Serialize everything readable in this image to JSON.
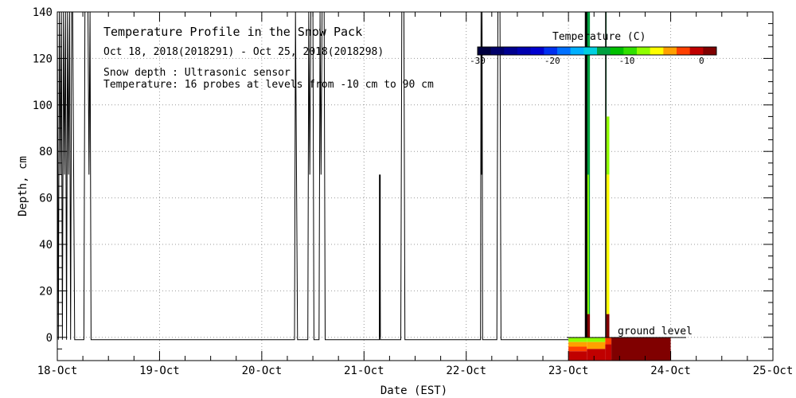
{
  "chart_data": {
    "type": "heatmap",
    "title": "Temperature Profile in the Snow Pack",
    "subtitle": "Oct 18, 2018(2018291) - Oct 25, 2018(2018298)",
    "notes": [
      "Snow depth : Ultrasonic sensor",
      "Temperature: 16 probes at levels from -10 cm to 90 cm"
    ],
    "xlabel": "Date (EST)",
    "ylabel": "Depth, cm",
    "x_ticks": [
      "18-Oct",
      "19-Oct",
      "20-Oct",
      "21-Oct",
      "22-Oct",
      "23-Oct",
      "24-Oct",
      "25-Oct"
    ],
    "xlim": [
      0,
      7
    ],
    "y_ticks": [
      "0",
      "20",
      "40",
      "60",
      "80",
      "100",
      "120",
      "140"
    ],
    "ylim": [
      -10,
      140
    ],
    "grid": true,
    "ground_label": "ground level",
    "colorbar": {
      "title": "Temperature (C)",
      "range": [
        -30,
        2
      ],
      "tick_labels": [
        "-30",
        "-20",
        "-10",
        "0"
      ],
      "tick_values": [
        -30,
        -20,
        -10,
        0
      ],
      "colors": [
        "#000040",
        "#00006a",
        "#000090",
        "#0000b0",
        "#0000d0",
        "#0030f0",
        "#0070ff",
        "#00b0ff",
        "#00d0e0",
        "#00a040",
        "#00c000",
        "#30e000",
        "#90ff00",
        "#ffff00",
        "#ffa000",
        "#ff4000",
        "#c00000",
        "#800000"
      ]
    },
    "snow_depth_series": {
      "description_units": "x in days since 18-Oct 00:00 EST, y in cm",
      "points": [
        [
          0.0,
          140
        ],
        [
          0.01,
          -1
        ],
        [
          0.02,
          140
        ],
        [
          0.03,
          70
        ],
        [
          0.04,
          140
        ],
        [
          0.05,
          -1
        ],
        [
          0.06,
          140
        ],
        [
          0.07,
          70
        ],
        [
          0.08,
          140
        ],
        [
          0.09,
          -1
        ],
        [
          0.1,
          140
        ],
        [
          0.11,
          70
        ],
        [
          0.12,
          140
        ],
        [
          0.13,
          -1
        ],
        [
          0.14,
          140
        ],
        [
          0.15,
          140
        ],
        [
          0.17,
          -1
        ],
        [
          0.26,
          -1
        ],
        [
          0.27,
          140
        ],
        [
          0.3,
          140
        ],
        [
          0.31,
          70
        ],
        [
          0.32,
          140
        ],
        [
          0.33,
          -1
        ],
        [
          2.32,
          -1
        ],
        [
          2.33,
          140
        ],
        [
          2.34,
          70
        ],
        [
          2.35,
          -1
        ],
        [
          2.45,
          -1
        ],
        [
          2.46,
          140
        ],
        [
          2.47,
          70
        ],
        [
          2.48,
          140
        ],
        [
          2.5,
          140
        ],
        [
          2.51,
          -1
        ],
        [
          2.56,
          -1
        ],
        [
          2.57,
          140
        ],
        [
          2.58,
          70
        ],
        [
          2.59,
          140
        ],
        [
          2.61,
          140
        ],
        [
          2.62,
          -1
        ],
        [
          3.15,
          -1
        ],
        [
          3.155,
          70
        ],
        [
          3.16,
          -1
        ],
        [
          3.36,
          -1
        ],
        [
          3.37,
          140
        ],
        [
          3.39,
          140
        ],
        [
          3.4,
          -1
        ],
        [
          4.14,
          -1
        ],
        [
          4.145,
          140
        ],
        [
          4.15,
          70
        ],
        [
          4.155,
          140
        ],
        [
          4.16,
          -1
        ],
        [
          4.3,
          -1
        ],
        [
          4.31,
          140
        ],
        [
          4.33,
          140
        ],
        [
          4.34,
          -1
        ],
        [
          5.0,
          -1
        ]
      ]
    },
    "temperature_columns": [
      {
        "day": 5.0,
        "width": 0.18,
        "layers": [
          {
            "top": 0,
            "bottom": -2,
            "temp": -7
          },
          {
            "top": -2,
            "bottom": -4,
            "temp": -4
          },
          {
            "top": -4,
            "bottom": -6,
            "temp": -2
          },
          {
            "top": -6,
            "bottom": -10,
            "temp": 0
          }
        ]
      },
      {
        "day": 5.18,
        "width": 0.18,
        "layers": [
          {
            "top": 0,
            "bottom": -2,
            "temp": -8
          },
          {
            "top": -2,
            "bottom": -5,
            "temp": -5
          },
          {
            "top": -5,
            "bottom": -10,
            "temp": -1
          }
        ]
      },
      {
        "day": 5.36,
        "width": 0.06,
        "layers": [
          {
            "top": 0,
            "bottom": -3,
            "temp": -3
          },
          {
            "top": -3,
            "bottom": -10,
            "temp": 0
          }
        ]
      },
      {
        "day": 5.42,
        "width": 0.58,
        "layers": [
          {
            "top": 0,
            "bottom": -10,
            "temp": 1
          }
        ]
      },
      {
        "day": 5.17,
        "width": 0.04,
        "layers": [
          {
            "top": 140,
            "bottom": 10,
            "temp": -14
          },
          {
            "top": 10,
            "bottom": 0,
            "temp": 1
          }
        ]
      },
      {
        "day": 5.37,
        "width": 0.03,
        "layers": [
          {
            "top": 95,
            "bottom": 70,
            "temp": -8
          },
          {
            "top": 70,
            "bottom": 10,
            "temp": -6
          },
          {
            "top": 10,
            "bottom": 0,
            "temp": 1
          }
        ]
      },
      {
        "day": 5.185,
        "width": 0.015,
        "layers": [
          {
            "top": 70,
            "bottom": 10,
            "temp": -8
          }
        ]
      },
      {
        "day": 5.365,
        "width": 0.008,
        "layers": [
          {
            "top": 140,
            "bottom": 95,
            "temp": -14
          }
        ]
      }
    ]
  }
}
